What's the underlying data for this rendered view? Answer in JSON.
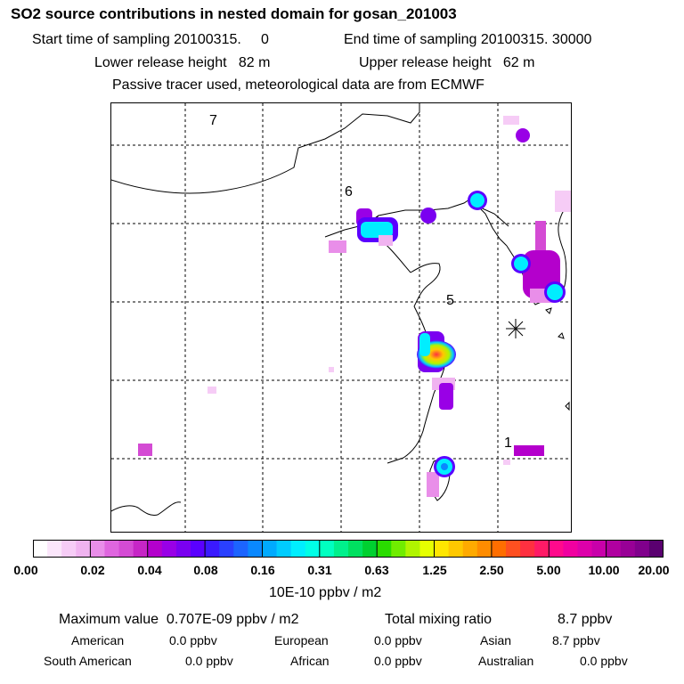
{
  "header": {
    "title": "SO2 source contributions in nested domain for gosan_201003",
    "start_label": "Start time of sampling 20100315.     0",
    "end_label": "End time of sampling 20100315. 30000",
    "lower_label": "Lower release height   82 m",
    "upper_label": "Upper release height   62 m",
    "tracer_note": "Passive tracer used, meteorological data are from ECMWF"
  },
  "map": {
    "day_labels": [
      "7",
      "6",
      "5",
      "1"
    ],
    "receptor": "gosan"
  },
  "colorbar": {
    "ticks": [
      "0.00",
      "0.02",
      "0.04",
      "0.08",
      "0.16",
      "0.31",
      "0.63",
      "1.25",
      "2.50",
      "5.00",
      "10.00",
      "20.00"
    ],
    "colors": [
      "#ffffff",
      "#fbe6fb",
      "#f6ccf6",
      "#f0b3f0",
      "#e98ee9",
      "#df66df",
      "#d44bd4",
      "#c626c6",
      "#b400cc",
      "#9900e6",
      "#7a00f0",
      "#5a00ff",
      "#3a1aff",
      "#2a40ff",
      "#1c64ff",
      "#0a88ff",
      "#00aaff",
      "#00ccff",
      "#00eeff",
      "#00ffe6",
      "#00ffc0",
      "#00f08c",
      "#00e060",
      "#00d030",
      "#2adc00",
      "#70ec00",
      "#b0f400",
      "#e6ff00",
      "#ffe600",
      "#ffc800",
      "#ffaa00",
      "#ff8c00",
      "#ff6e00",
      "#ff5020",
      "#ff3040",
      "#ff1a66",
      "#ff0a8c",
      "#f000a0",
      "#dd00aa",
      "#c800aa",
      "#b000a0",
      "#980096",
      "#80008c",
      "#5a0070"
    ],
    "units": "10E-10 ppbv / m2"
  },
  "summary": {
    "max_label": "Maximum value  0.707E-09 ppbv / m2",
    "total_label": "Total mixing ratio",
    "total_value": "8.7 ppbv",
    "regions": [
      {
        "name": "American",
        "value": "0.0 ppbv"
      },
      {
        "name": "European",
        "value": "0.0 ppbv"
      },
      {
        "name": "Asian",
        "value": "8.7 ppbv"
      },
      {
        "name": "South American",
        "value": "0.0 ppbv"
      },
      {
        "name": "African",
        "value": "0.0 ppbv"
      },
      {
        "name": "Australian",
        "value": "0.0 ppbv"
      }
    ]
  }
}
